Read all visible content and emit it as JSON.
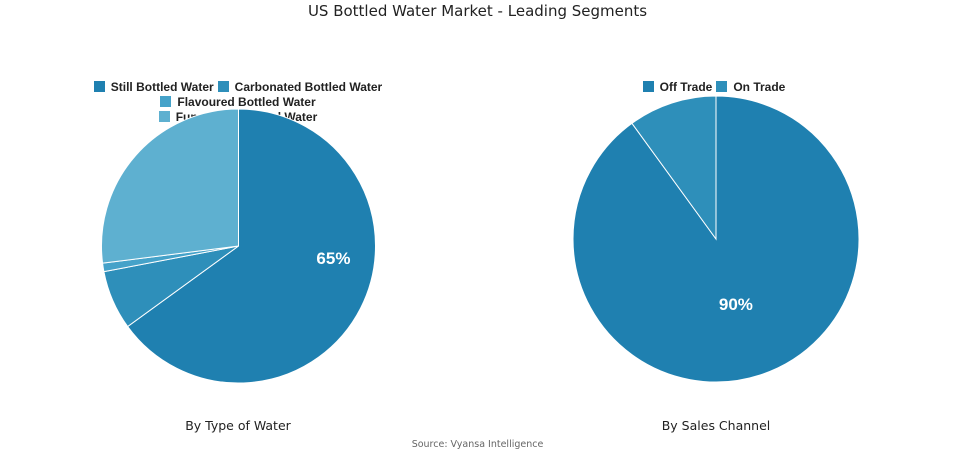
{
  "title": "US Bottled Water Market - Leading Segments",
  "source": "Source: Vyansa Intelligence",
  "chart_data": [
    {
      "type": "pie",
      "title": "By Type of Water",
      "legend_position": "top",
      "categories": [
        "Still Bottled Water",
        "Carbonated Bottled Water",
        "Flavoured Bottled Water",
        "Functional Bottled Water"
      ],
      "values": [
        65,
        7,
        1,
        27
      ],
      "colors": [
        "#1f80b0",
        "#2e8fba",
        "#45a2c9",
        "#5eb0d0"
      ],
      "data_labels": [
        "65%",
        "",
        "",
        ""
      ]
    },
    {
      "type": "pie",
      "title": "By Sales Channel",
      "legend_position": "top",
      "categories": [
        "Off Trade",
        "On Trade"
      ],
      "values": [
        90,
        10
      ],
      "colors": [
        "#1f80b0",
        "#2e8fba"
      ],
      "data_labels": [
        "90%",
        ""
      ]
    }
  ]
}
